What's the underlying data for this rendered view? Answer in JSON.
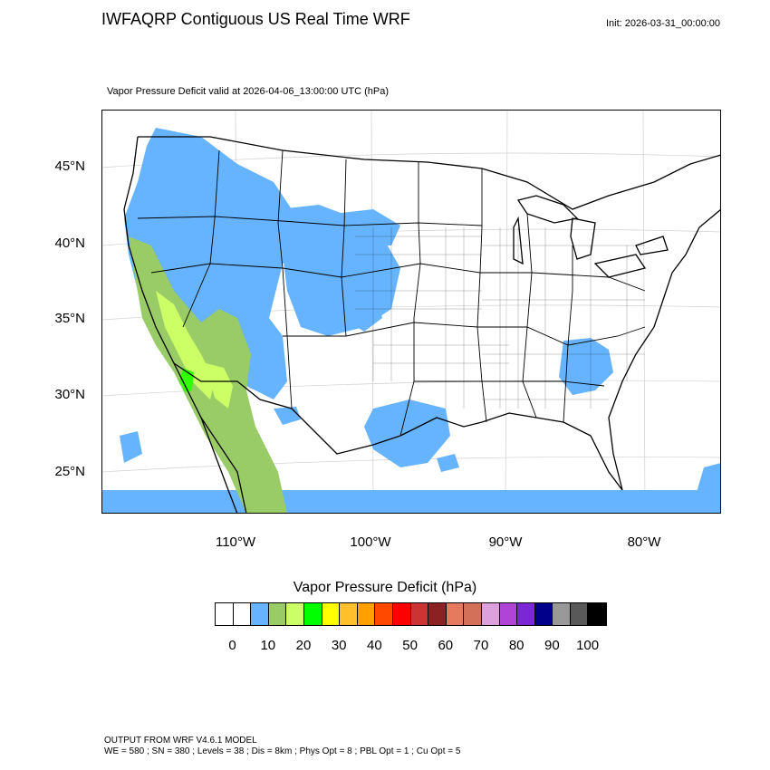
{
  "header": {
    "title": "IWFAQRP Contiguous US Real Time WRF",
    "init": "Init: 2026-03-31_00:00:00",
    "subtitle": "Vapor Pressure Deficit valid at 2026-04-06_13:00:00 UTC   (hPa)"
  },
  "map": {
    "lat_labels": [
      "45°N",
      "40°N",
      "35°N",
      "30°N",
      "25°N"
    ],
    "lon_labels": [
      "110°W",
      "100°W",
      "90°W",
      "80°W"
    ],
    "field_colors": {
      "low": "#66b3ff",
      "mid": "#99cc66",
      "high": "#ccff66",
      "peak": "#33ff00",
      "ocean_low": "#66b3ff"
    }
  },
  "colorbar": {
    "title": "Vapor Pressure Deficit  (hPa)",
    "colors": [
      "#ffffff",
      "#ffffff",
      "#66b3ff",
      "#99cc66",
      "#ccff66",
      "#00ff00",
      "#ffff00",
      "#ffc02b",
      "#ff9f00",
      "#ff4800",
      "#ff0000",
      "#cc3333",
      "#8b2222",
      "#e6795e",
      "#d27059",
      "#dda0dd",
      "#b044d6",
      "#7c27d6",
      "#00008b",
      "#999999",
      "#595959",
      "#000000"
    ],
    "labels": [
      "0",
      "10",
      "20",
      "30",
      "40",
      "50",
      "60",
      "70",
      "80",
      "90",
      "100"
    ]
  },
  "footer": {
    "line1": "OUTPUT FROM WRF V4.6.1 MODEL",
    "line2": "WE = 580 ; SN = 380 ; Levels = 38 ; Dis = 8km ; Phys Opt = 8 ; PBL Opt = 1 ; Cu Opt = 5"
  }
}
